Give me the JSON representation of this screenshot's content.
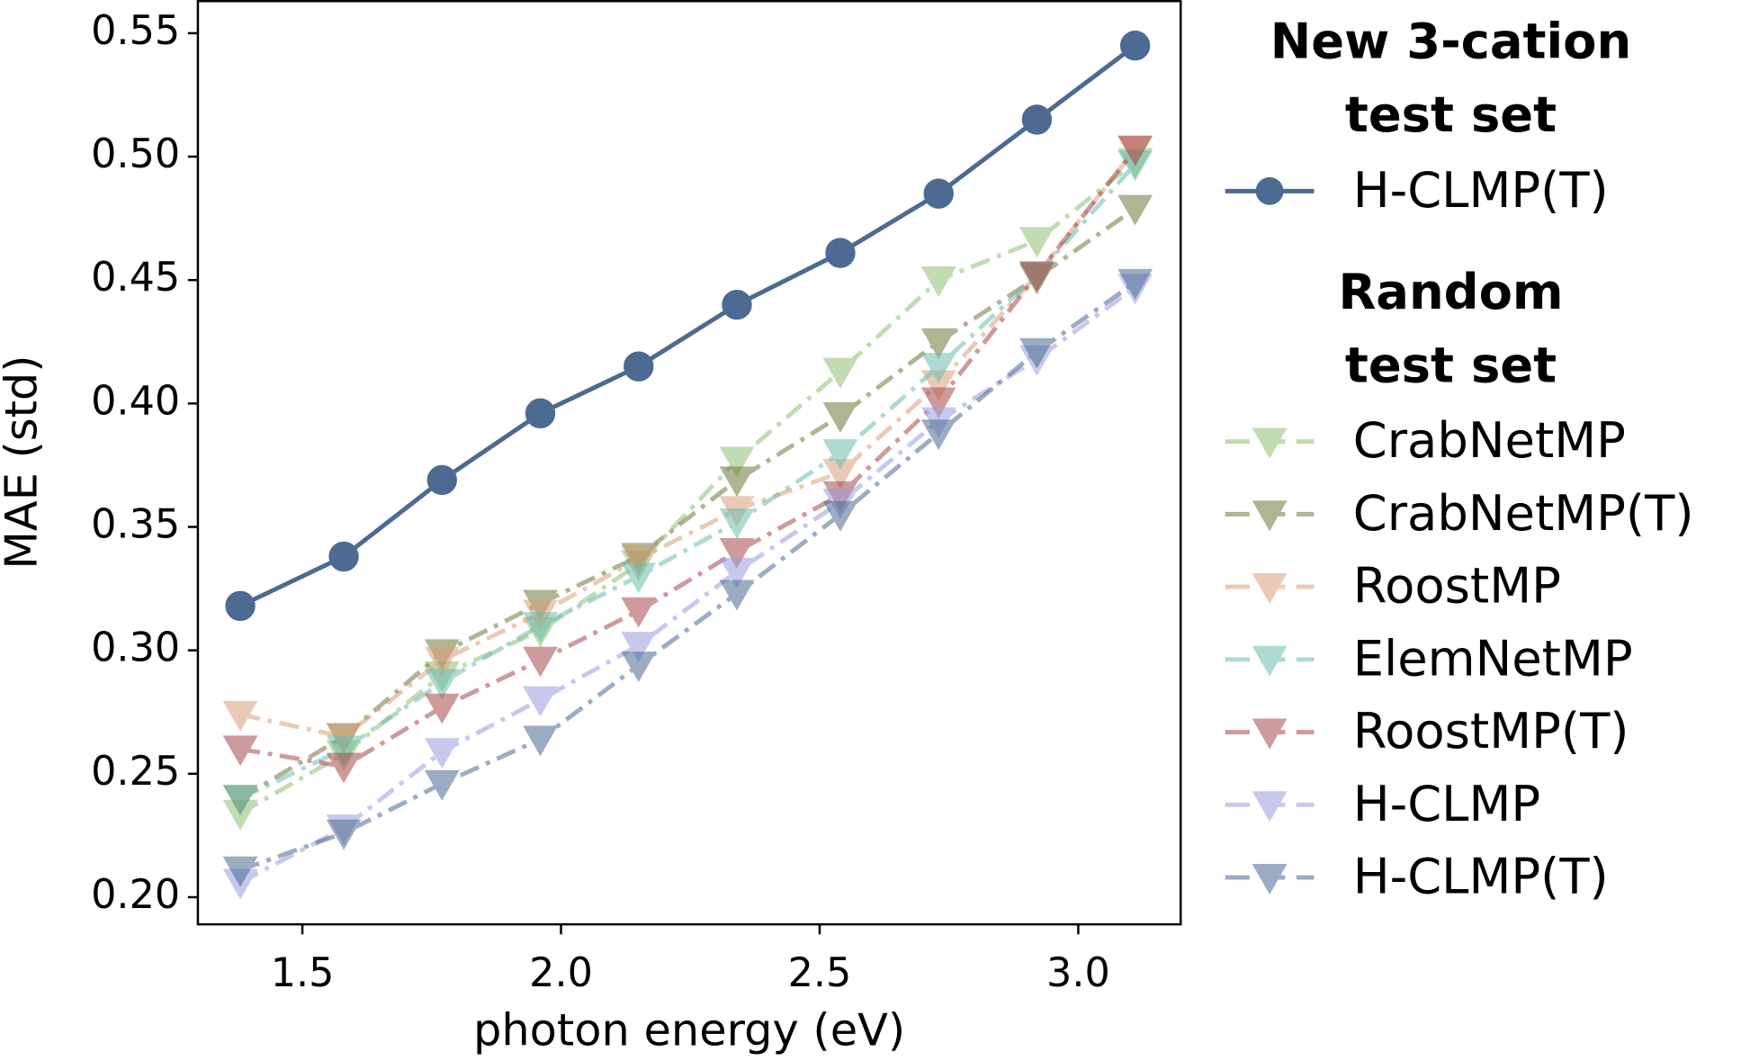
{
  "chart_data": {
    "type": "line",
    "x_label": "photon energy (eV)",
    "y_label": "MAE (std)",
    "x": [
      1.38,
      1.58,
      1.77,
      1.96,
      2.15,
      2.34,
      2.54,
      2.73,
      2.92,
      3.11
    ],
    "xlim": [
      1.298,
      3.198
    ],
    "ylim": [
      0.189,
      0.563
    ],
    "xticks": [
      1.5,
      {
        "value": 2,
        "label": "2.0"
      },
      2.5,
      {
        "value": 3,
        "label": "3.0"
      }
    ],
    "yticks": [
      {
        "value": 0.2,
        "label": "0.20"
      },
      0.25,
      {
        "value": 0.3,
        "label": "0.30"
      },
      0.35,
      {
        "value": 0.4,
        "label": "0.40"
      },
      0.45,
      {
        "value": 0.5,
        "label": "0.50"
      },
      0.55
    ],
    "grid": false,
    "legend_position": "outside right",
    "series": [
      {
        "name": "H-CLMP(T)",
        "legend_title": [
          "New 3-cation",
          "test set"
        ],
        "color": "#4c6a92",
        "linestyle": "solid",
        "marker": "circle",
        "alpha": 1,
        "values": [
          0.318,
          0.338,
          0.369,
          0.396,
          0.415,
          0.44,
          0.461,
          0.485,
          0.515,
          0.545
        ]
      },
      {
        "name": "CrabNetMP",
        "legend_title": [
          "Random",
          "test set"
        ],
        "color": "#8fbf76",
        "linestyle": "dashdot",
        "marker": "triangle_down",
        "alpha": 0.55,
        "values": [
          0.234,
          0.258,
          0.29,
          0.308,
          0.335,
          0.377,
          0.413,
          0.45,
          0.466,
          0.498
        ]
      },
      {
        "name": "CrabNetMP(T)",
        "color": "#6f7a3c",
        "linestyle": "dashdot",
        "marker": "triangle_down",
        "alpha": 0.55,
        "values": [
          0.24,
          0.265,
          0.299,
          0.319,
          0.338,
          0.369,
          0.395,
          0.425,
          0.451,
          0.479
        ]
      },
      {
        "name": "RoostMP",
        "color": "#d9a07e",
        "linestyle": "dashdot",
        "marker": "triangle_down",
        "alpha": 0.55,
        "values": [
          0.274,
          0.265,
          0.296,
          0.315,
          0.337,
          0.357,
          0.372,
          0.408,
          0.452,
          0.503
        ]
      },
      {
        "name": "ElemNetMP",
        "color": "#6dbdac",
        "linestyle": "dashdot",
        "marker": "triangle_down",
        "alpha": 0.55,
        "values": [
          0.24,
          0.26,
          0.287,
          0.31,
          0.33,
          0.352,
          0.38,
          0.415,
          0.452,
          0.497
        ]
      },
      {
        "name": "RoostMP(T)",
        "color": "#a8484a",
        "linestyle": "dashdot",
        "marker": "triangle_down",
        "alpha": 0.55,
        "values": [
          0.26,
          0.253,
          0.277,
          0.296,
          0.316,
          0.34,
          0.363,
          0.401,
          0.452,
          0.503
        ]
      },
      {
        "name": "H-CLMP",
        "color": "#9c9ce0",
        "linestyle": "dashdot",
        "marker": "triangle_down",
        "alpha": 0.55,
        "values": [
          0.206,
          0.228,
          0.259,
          0.28,
          0.302,
          0.332,
          0.36,
          0.393,
          0.418,
          0.447
        ]
      },
      {
        "name": "H-CLMP(T)",
        "color": "#4c6a92",
        "linestyle": "dashdot",
        "marker": "triangle_down",
        "alpha": 0.55,
        "values": [
          0.211,
          0.226,
          0.246,
          0.264,
          0.294,
          0.323,
          0.355,
          0.388,
          0.421,
          0.449
        ]
      }
    ]
  }
}
